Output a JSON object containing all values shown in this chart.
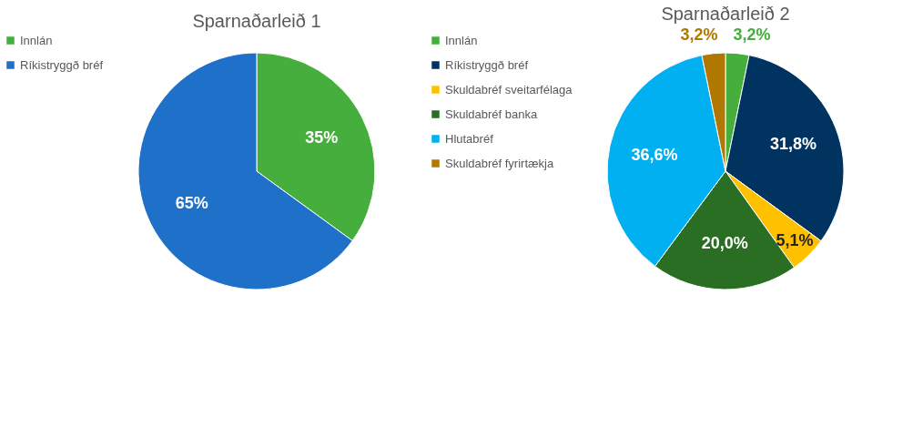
{
  "chart_data": [
    {
      "type": "pie",
      "title": "Sparnaðarleið 1",
      "categories": [
        "Innlán",
        "Ríkistryggð bréf"
      ],
      "values": [
        35,
        65
      ],
      "colors": [
        "#46ae3c",
        "#1e70c8"
      ],
      "value_labels": [
        "35%",
        "65%"
      ],
      "legend": "left"
    },
    {
      "type": "pie",
      "title": "Sparnaðarleið 2",
      "categories": [
        "Innlán",
        "Ríkistryggð bréf",
        "Skuldabréf sveitarfélaga",
        "Skuldabréf banka",
        "Hlutabréf",
        "Skuldabréf fyrirtækja"
      ],
      "values": [
        3.2,
        31.8,
        5.1,
        20.0,
        36.6,
        3.2
      ],
      "colors": [
        "#46ae3c",
        "#00335f",
        "#ffc000",
        "#2a6e23",
        "#00b0f0",
        "#b07800"
      ],
      "value_labels": [
        "3,2%",
        "31,8%",
        "5,1%",
        "20,0%",
        "36,6%",
        "3,2%"
      ],
      "legend": "left"
    }
  ]
}
